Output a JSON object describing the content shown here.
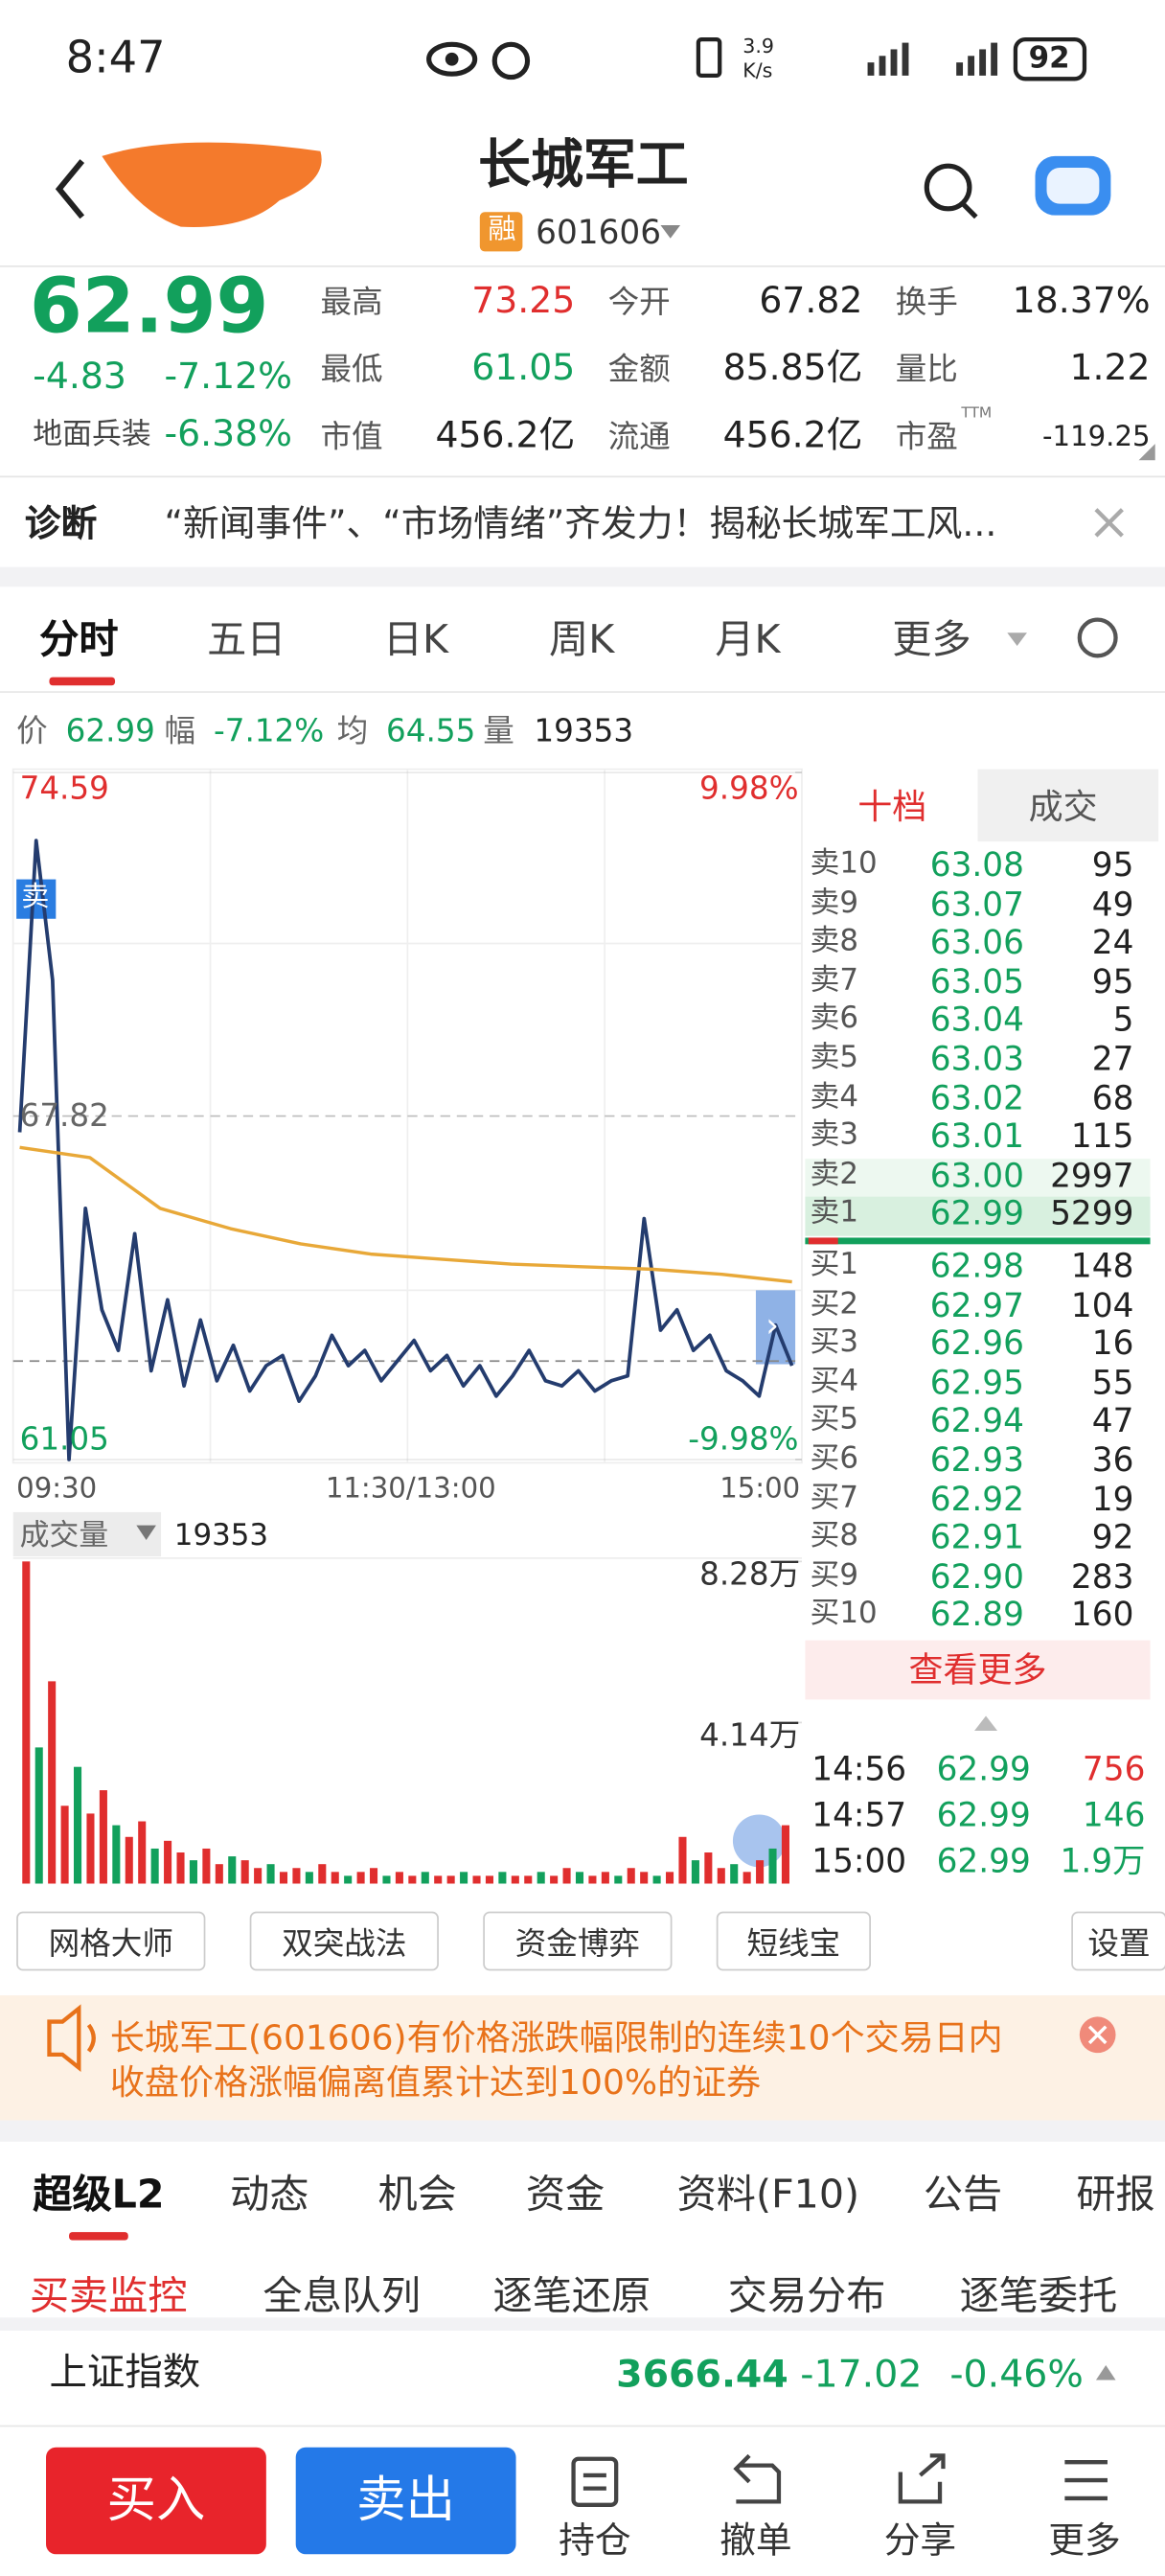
{
  "status_bar": {
    "time": "8:47",
    "net_speed": "3.9",
    "net_unit": "K/s",
    "battery": "92"
  },
  "header": {
    "name": "长城军工",
    "tag": "融",
    "code": "601606"
  },
  "quote": {
    "price": "62.99",
    "change": "-4.83",
    "change_pct": "-7.12%",
    "sector": "地面兵装",
    "sector_pct": "-6.38%"
  },
  "stats": [
    {
      "label": "最高",
      "value": "73.25",
      "color": "#e02e2e"
    },
    {
      "label": "今开",
      "value": "67.82"
    },
    {
      "label": "换手",
      "value": "18.37%"
    },
    {
      "label": "最低",
      "value": "61.05",
      "color": "#12a05c"
    },
    {
      "label": "金额",
      "value": "85.85亿"
    },
    {
      "label": "量比",
      "value": "1.22"
    },
    {
      "label": "市值",
      "value": "456.2亿"
    },
    {
      "label": "流通",
      "value": "456.2亿"
    },
    {
      "label": "市盈",
      "sup": "TTM",
      "value": "-119.25"
    }
  ],
  "diagnosis": {
    "label": "诊断",
    "text": "“新闻事件”、“市场情绪”齐发力！揭秘长城军工风..."
  },
  "chart_tabs": [
    "分时",
    "五日",
    "日K",
    "周K",
    "月K",
    "更多"
  ],
  "info_line": {
    "price_label": "价",
    "price": "62.99",
    "range_label": "幅",
    "range": "-7.12%",
    "avg_label": "均",
    "avg": "64.55",
    "vol_label": "量",
    "vol": "19353"
  },
  "chart_data": [
    {
      "type": "line",
      "ylim": [
        61.05,
        74.59
      ],
      "yticks": [
        74.59,
        67.82,
        61.05
      ],
      "y2lim": [
        -9.98,
        9.98
      ],
      "y2ticks": [
        {
          "value": 9.98,
          "label": "9.98%"
        },
        {
          "value": -9.98,
          "label": "-9.98%"
        }
      ],
      "x_labels": [
        "09:30",
        "11:30/13:00",
        "15:00"
      ],
      "marker": "卖",
      "series": [
        {
          "name": "价",
          "color": "#243c6e",
          "values": [
            67.5,
            73.25,
            70.5,
            61.05,
            66,
            64,
            63.2,
            65.5,
            62.8,
            64.2,
            62.5,
            63.8,
            62.6,
            63.3,
            62.4,
            62.9,
            63.1,
            62.2,
            62.7,
            63.5,
            62.9,
            63.2,
            62.6,
            63.0,
            63.4,
            62.8,
            63.1,
            62.5,
            62.9,
            62.3,
            62.7,
            63.2,
            62.6,
            62.5,
            62.8,
            62.4,
            62.6,
            62.7,
            65.8,
            63.6,
            64.0,
            63.2,
            63.5,
            62.8,
            62.6,
            62.3,
            63.7,
            62.9
          ]
        },
        {
          "name": "均",
          "color": "#e8a838",
          "values": [
            67.2,
            67.0,
            66.0,
            65.6,
            65.3,
            65.1,
            65.0,
            64.9,
            64.85,
            64.8,
            64.7,
            64.55
          ]
        }
      ]
    },
    {
      "type": "bar",
      "title": "成交量",
      "current": "19353",
      "ylim": [
        0,
        8.28
      ],
      "yticks": [
        {
          "value": 8.28,
          "label": "8.28万"
        },
        {
          "value": 4.14,
          "label": "4.14万"
        }
      ],
      "colors": [
        "#e02e2e",
        "#12a05c"
      ],
      "values": [
        8.28,
        3.5,
        5.2,
        2.0,
        3.0,
        1.8,
        2.4,
        1.5,
        1.2,
        1.6,
        0.9,
        1.1,
        0.8,
        0.6,
        0.9,
        0.5,
        0.7,
        0.6,
        0.4,
        0.5,
        0.3,
        0.4,
        0.3,
        0.5,
        0.3,
        0.2,
        0.3,
        0.4,
        0.2,
        0.3,
        0.2,
        0.3,
        0.2,
        0.2,
        0.3,
        0.2,
        0.2,
        0.3,
        0.2,
        0.2,
        0.3,
        0.2,
        0.4,
        0.3,
        0.2,
        0.3,
        0.2,
        0.4,
        0.3,
        0.2,
        0.3,
        1.2,
        0.6,
        0.8,
        0.4,
        0.5,
        0.3,
        0.6,
        0.9,
        1.5
      ]
    }
  ],
  "order_book": {
    "tabs": [
      "十档",
      "成交"
    ],
    "asks": [
      {
        "label": "卖10",
        "price": "63.08",
        "volume": "95"
      },
      {
        "label": "卖9",
        "price": "63.07",
        "volume": "49"
      },
      {
        "label": "卖8",
        "price": "63.06",
        "volume": "24"
      },
      {
        "label": "卖7",
        "price": "63.05",
        "volume": "95"
      },
      {
        "label": "卖6",
        "price": "63.04",
        "volume": "5"
      },
      {
        "label": "卖5",
        "price": "63.03",
        "volume": "27"
      },
      {
        "label": "卖4",
        "price": "63.02",
        "volume": "68"
      },
      {
        "label": "卖3",
        "price": "63.01",
        "volume": "115"
      },
      {
        "label": "卖2",
        "price": "63.00",
        "volume": "2997"
      },
      {
        "label": "卖1",
        "price": "62.99",
        "volume": "5299"
      }
    ],
    "bids": [
      {
        "label": "买1",
        "price": "62.98",
        "volume": "148"
      },
      {
        "label": "买2",
        "price": "62.97",
        "volume": "104"
      },
      {
        "label": "买3",
        "price": "62.96",
        "volume": "16"
      },
      {
        "label": "买4",
        "price": "62.95",
        "volume": "55"
      },
      {
        "label": "买5",
        "price": "62.94",
        "volume": "47"
      },
      {
        "label": "买6",
        "price": "62.93",
        "volume": "36"
      },
      {
        "label": "买7",
        "price": "62.92",
        "volume": "19"
      },
      {
        "label": "买8",
        "price": "62.91",
        "volume": "92"
      },
      {
        "label": "买9",
        "price": "62.90",
        "volume": "283"
      },
      {
        "label": "买10",
        "price": "62.89",
        "volume": "160"
      }
    ],
    "more": "查看更多",
    "trades": [
      {
        "time": "14:56",
        "price": "62.99",
        "volume": "756",
        "color": "#e02e2e"
      },
      {
        "time": "14:57",
        "price": "62.99",
        "volume": "146",
        "color": "#12a05c"
      },
      {
        "time": "15:00",
        "price": "62.99",
        "volume": "1.9万",
        "color": "#12a05c"
      }
    ]
  },
  "tools": [
    "网格大师",
    "双突战法",
    "资金博弈",
    "短线宝",
    "设置"
  ],
  "notice": {
    "line1": "长城军工(601606)有价格涨跌幅限制的连续10个交易日内",
    "line2": "收盘价格涨幅偏离值累计达到100%的证券"
  },
  "section_tabs": [
    "超级L2",
    "动态",
    "机会",
    "资金",
    "资料(F10)",
    "公告",
    "研报"
  ],
  "sub_tabs": [
    "买卖监控",
    "全息队列",
    "逐笔还原",
    "交易分布",
    "逐笔委托"
  ],
  "index": {
    "name": "上证指数",
    "value": "3666.44",
    "change": "-17.02",
    "change_pct": "-0.46%"
  },
  "actions": {
    "buy": "买入",
    "sell": "卖出",
    "items": [
      "持仓",
      "撤单",
      "分享",
      "更多"
    ]
  }
}
